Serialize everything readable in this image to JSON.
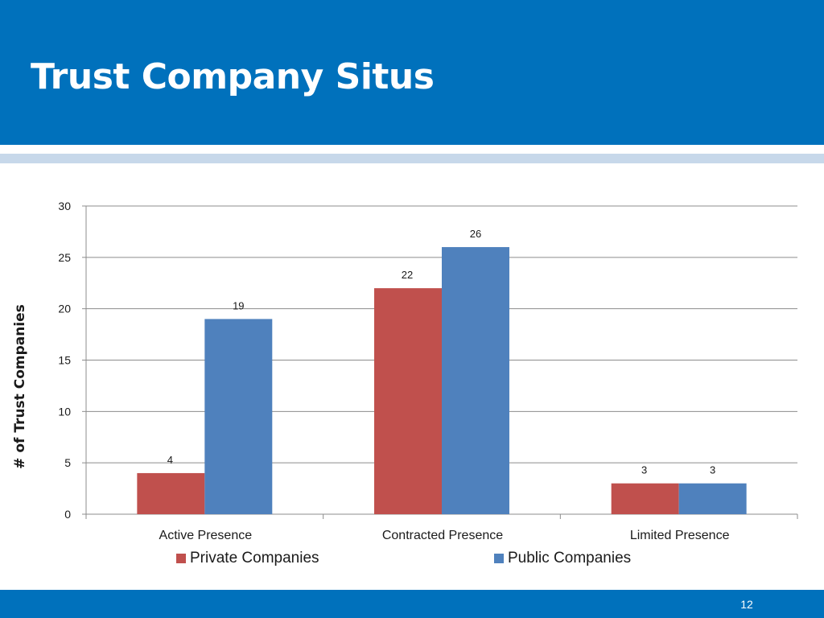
{
  "slide": {
    "title": "Trust Company Situs",
    "page_number": "12"
  },
  "colors": {
    "header": "#0071BC",
    "accent_strip": "#C7D8EA",
    "private": "#C0504D",
    "public": "#4F81BD"
  },
  "chart_data": {
    "type": "bar",
    "title": "",
    "xlabel": "",
    "ylabel": "# of Trust Companies",
    "categories": [
      "Active Presence",
      "Contracted Presence",
      "Limited Presence"
    ],
    "series": [
      {
        "name": "Private Companies",
        "values": [
          4,
          22,
          3
        ],
        "color": "#C0504D"
      },
      {
        "name": "Public Companies",
        "values": [
          19,
          26,
          3
        ],
        "color": "#4F81BD"
      }
    ],
    "ylim": [
      0,
      30
    ],
    "yticks": [
      0,
      5,
      10,
      15,
      20,
      25,
      30
    ],
    "grid": true,
    "data_labels": true,
    "legend_position": "bottom"
  }
}
